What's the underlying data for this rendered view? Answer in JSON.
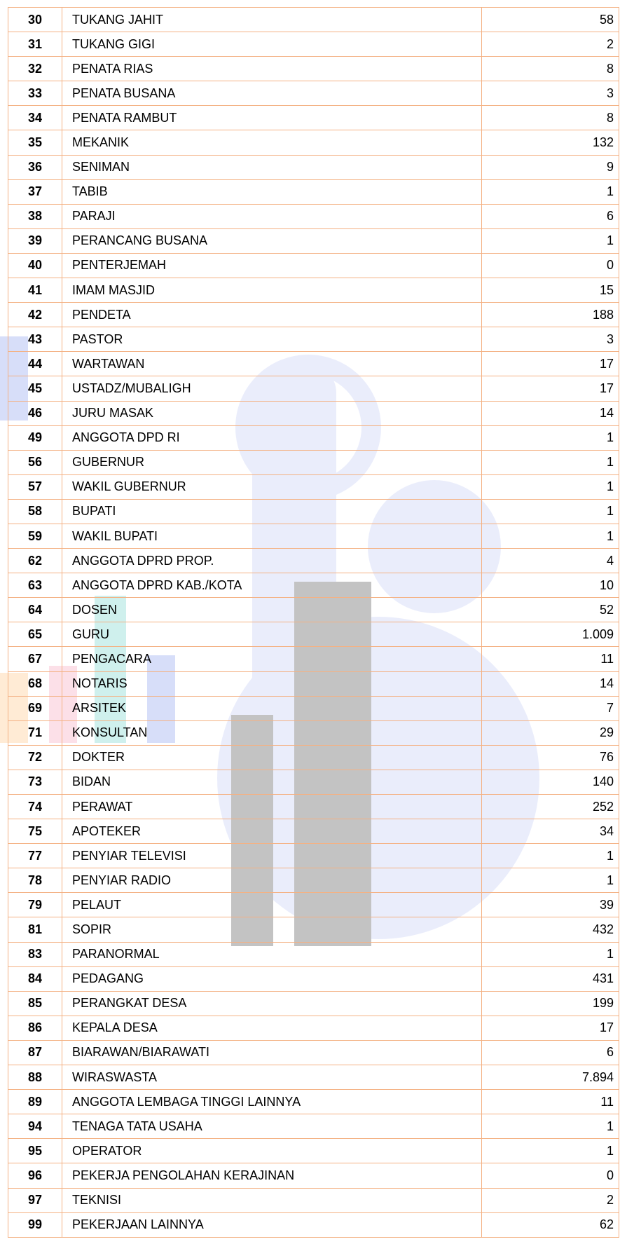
{
  "table": {
    "rows": [
      [
        "30",
        "TUKANG JAHIT",
        "58"
      ],
      [
        "31",
        "TUKANG GIGI",
        "2"
      ],
      [
        "32",
        "PENATA RIAS",
        "8"
      ],
      [
        "33",
        "PENATA BUSANA",
        "3"
      ],
      [
        "34",
        "PENATA RAMBUT",
        "8"
      ],
      [
        "35",
        "MEKANIK",
        "132"
      ],
      [
        "36",
        "SENIMAN",
        "9"
      ],
      [
        "37",
        "TABIB",
        "1"
      ],
      [
        "38",
        "PARAJI",
        "6"
      ],
      [
        "39",
        "PERANCANG BUSANA",
        "1"
      ],
      [
        "40",
        "PENTERJEMAH",
        "0"
      ],
      [
        "41",
        "IMAM MASJID",
        "15"
      ],
      [
        "42",
        "PENDETA",
        "188"
      ],
      [
        "43",
        "PASTOR",
        "3"
      ],
      [
        "44",
        "WARTAWAN",
        "17"
      ],
      [
        "45",
        "USTADZ/MUBALIGH",
        "17"
      ],
      [
        "46",
        "JURU MASAK",
        "14"
      ],
      [
        "49",
        "ANGGOTA DPD RI",
        "1"
      ],
      [
        "56",
        "GUBERNUR",
        "1"
      ],
      [
        "57",
        "WAKIL GUBERNUR",
        "1"
      ],
      [
        "58",
        "BUPATI",
        "1"
      ],
      [
        "59",
        "WAKIL BUPATI",
        "1"
      ],
      [
        "62",
        "ANGGOTA DPRD PROP.",
        "4"
      ],
      [
        "63",
        "ANGGOTA DPRD KAB./KOTA",
        "10"
      ],
      [
        "64",
        "DOSEN",
        "52"
      ],
      [
        "65",
        "GURU",
        "1.009"
      ],
      [
        "67",
        "PENGACARA",
        "11"
      ],
      [
        "68",
        "NOTARIS",
        "14"
      ],
      [
        "69",
        "ARSITEK",
        "7"
      ],
      [
        "71",
        "KONSULTAN",
        "29"
      ],
      [
        "72",
        "DOKTER",
        "76"
      ],
      [
        "73",
        "BIDAN",
        "140"
      ],
      [
        "74",
        "PERAWAT",
        "252"
      ],
      [
        "75",
        "APOTEKER",
        "34"
      ],
      [
        "77",
        "PENYIAR TELEVISI",
        "1"
      ],
      [
        "78",
        "PENYIAR RADIO",
        "1"
      ],
      [
        "79",
        "PELAUT",
        "39"
      ],
      [
        "81",
        "SOPIR",
        "432"
      ],
      [
        "83",
        "PARANORMAL",
        "1"
      ],
      [
        "84",
        "PEDAGANG",
        "431"
      ],
      [
        "85",
        "PERANGKAT DESA",
        "199"
      ],
      [
        "86",
        "KEPALA DESA",
        "17"
      ],
      [
        "87",
        "BIARAWAN/BIARAWATI",
        "6"
      ],
      [
        "88",
        "WIRASWASTA",
        "7.894"
      ],
      [
        "89",
        "ANGGOTA LEMBAGA TINGGI LAINNYA",
        "11"
      ],
      [
        "94",
        "TENAGA TATA USAHA",
        "1"
      ],
      [
        "95",
        "OPERATOR",
        "1"
      ],
      [
        "96",
        "PEKERJA PENGOLAHAN KERAJINAN",
        "0"
      ],
      [
        "97",
        "TEKNISI",
        "2"
      ],
      [
        "99",
        "PEKERJAAN LAINNYA",
        "62"
      ]
    ]
  }
}
